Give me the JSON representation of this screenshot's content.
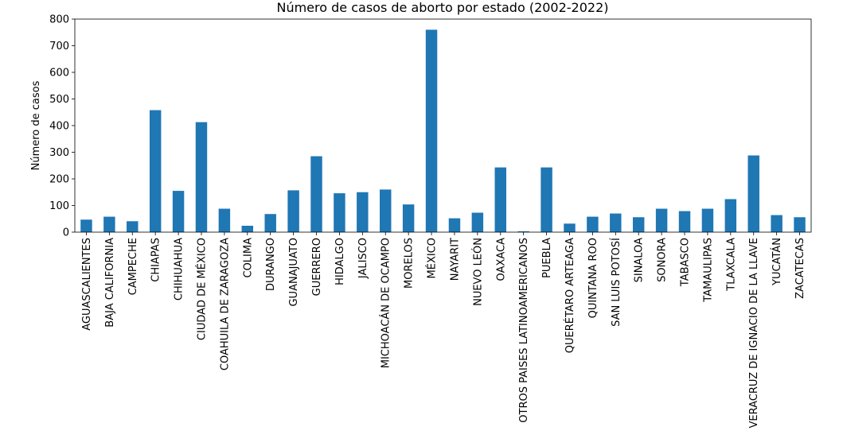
{
  "chart_data": {
    "type": "bar",
    "title": "Número de casos de aborto por estado (2002-2022)",
    "xlabel": "",
    "ylabel": "Número de casos",
    "ylim": [
      0,
      800
    ],
    "yticks": [
      0,
      100,
      200,
      300,
      400,
      500,
      600,
      700,
      800
    ],
    "grid": false,
    "bar_color": "#1f77b4",
    "categories": [
      "AGUASCALIENTES",
      "BAJA CALIFORNIA",
      "CAMPECHE",
      "CHIAPAS",
      "CHIHUAHUA",
      "CIUDAD DE MÉXICO",
      "COAHUILA DE ZARAGOZA",
      "COLIMA",
      "DURANGO",
      "GUANAJUATO",
      "GUERRERO",
      "HIDALGO",
      "JALISCO",
      "MICHOACÁN DE OCAMPO",
      "MORELOS",
      "MÉXICO",
      "NAYARIT",
      "NUEVO LEÓN",
      "OAXACA",
      "OTROS PAISES LATINOAMERICANOS",
      "PUEBLA",
      "QUERÉTARO ARTEAGA",
      "QUINTANA ROO",
      "SAN LUIS POTOSÍ",
      "SINALOA",
      "SONORA",
      "TABASCO",
      "TAMAULIPAS",
      "TLAXCALA",
      "VERACRUZ DE IGNACIO DE LA LLAVE",
      "YUCATÁN",
      "ZACATECAS"
    ],
    "values": [
      47,
      58,
      41,
      458,
      155,
      413,
      88,
      24,
      68,
      157,
      285,
      146,
      150,
      160,
      104,
      760,
      52,
      73,
      243,
      3,
      243,
      32,
      58,
      70,
      56,
      88,
      79,
      88,
      124,
      288,
      64,
      56
    ]
  }
}
